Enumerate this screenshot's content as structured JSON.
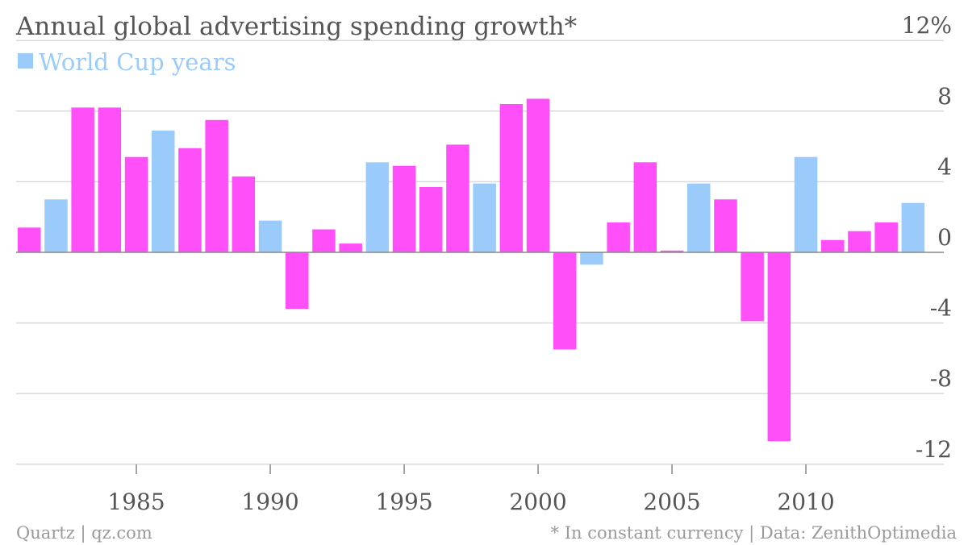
{
  "colors": {
    "regular": "#FF4FF8",
    "world_cup": "#9BCBFA",
    "text": "#555555",
    "footer_text": "#9A9A9A",
    "grid": "#DADADA",
    "axis": "#888888"
  },
  "chart_data": {
    "type": "bar",
    "title": "Annual global advertising spending growth*",
    "legend": {
      "label": "World Cup years",
      "placement": "top-left"
    },
    "y_unit_label": "12%",
    "ylim": [
      -12,
      12
    ],
    "y_ticks": [
      12,
      8,
      4,
      0,
      -4,
      -8,
      -12
    ],
    "y_tick_labels": [
      "12%",
      "8",
      "4",
      "0",
      "-4",
      "-8",
      "-12"
    ],
    "x_ticks": [
      1985,
      1990,
      1995,
      2000,
      2005,
      2010
    ],
    "x_tick_labels": [
      "1985",
      "1990",
      "1995",
      "2000",
      "2005",
      "2010"
    ],
    "grid": true,
    "years": [
      1981,
      1982,
      1983,
      1984,
      1985,
      1986,
      1987,
      1988,
      1989,
      1990,
      1991,
      1992,
      1993,
      1994,
      1995,
      1996,
      1997,
      1998,
      1999,
      2000,
      2001,
      2002,
      2003,
      2004,
      2005,
      2006,
      2007,
      2008,
      2009,
      2010,
      2011,
      2012,
      2013,
      2014
    ],
    "values": [
      1.4,
      3.0,
      8.2,
      8.2,
      5.4,
      6.9,
      5.9,
      7.5,
      4.3,
      1.8,
      -3.2,
      1.3,
      0.5,
      5.1,
      4.9,
      3.7,
      6.1,
      3.9,
      8.4,
      8.7,
      -5.5,
      -0.7,
      1.7,
      5.1,
      0.1,
      3.9,
      3.0,
      -3.9,
      -10.7,
      5.4,
      0.7,
      1.2,
      1.7,
      2.8
    ],
    "world_cup_years": [
      1982,
      1986,
      1990,
      1994,
      1998,
      2002,
      2006,
      2010,
      2014
    ]
  },
  "footer": {
    "source_left": "Quartz | qz.com",
    "note_right": "* In constant currency | Data: ZenithOptimedia"
  }
}
